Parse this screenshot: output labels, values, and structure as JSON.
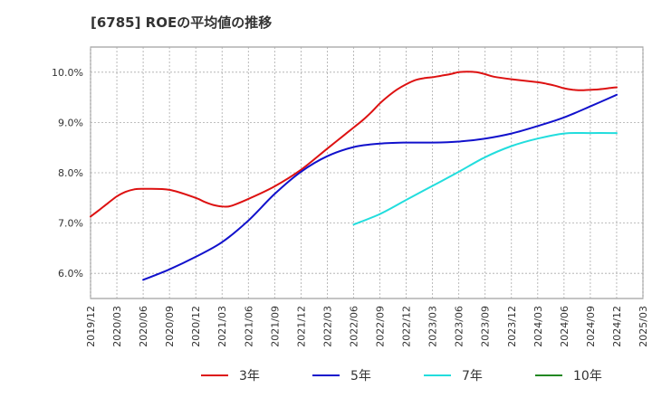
{
  "chart_data": {
    "type": "line",
    "title": "[6785]  ROEの平均値の推移",
    "xlabel": "",
    "ylabel": "",
    "ylim": [
      5.5,
      10.5
    ],
    "xlim": [
      "2019/12",
      "2025/03"
    ],
    "y_ticks": [
      6.0,
      7.0,
      8.0,
      9.0,
      10.0
    ],
    "y_tick_labels": [
      "6.0%",
      "7.0%",
      "8.0%",
      "9.0%",
      "10.0%"
    ],
    "x_ticks": [
      "2019/12",
      "2020/03",
      "2020/06",
      "2020/09",
      "2020/12",
      "2021/03",
      "2021/06",
      "2021/09",
      "2021/12",
      "2022/03",
      "2022/06",
      "2022/09",
      "2022/12",
      "2023/03",
      "2023/06",
      "2023/09",
      "2023/12",
      "2024/03",
      "2024/06",
      "2024/09",
      "2024/12",
      "2025/03"
    ],
    "grid": true,
    "legend_position": "bottom",
    "series": [
      {
        "name": "3年",
        "color": "#dd1111",
        "x": [
          "2019/12",
          "2020/01",
          "2020/02",
          "2020/03",
          "2020/04",
          "2020/05",
          "2020/06",
          "2020/09",
          "2020/12",
          "2021/01",
          "2021/02",
          "2021/03",
          "2021/04",
          "2021/06",
          "2021/09",
          "2021/12",
          "2022/03",
          "2022/06",
          "2022/07",
          "2022/08",
          "2022/09",
          "2022/10",
          "2022/11",
          "2022/12",
          "2023/01",
          "2023/02",
          "2023/03",
          "2023/04",
          "2023/05",
          "2023/06",
          "2023/07",
          "2023/08",
          "2023/09",
          "2023/10",
          "2023/12",
          "2024/03",
          "2024/04",
          "2024/05",
          "2024/06",
          "2024/07",
          "2024/08",
          "2024/09",
          "2024/10",
          "2024/11",
          "2024/12"
        ],
        "values": [
          7.13,
          7.26,
          7.4,
          7.53,
          7.62,
          7.67,
          7.68,
          7.66,
          7.5,
          7.42,
          7.36,
          7.33,
          7.34,
          7.48,
          7.73,
          8.06,
          8.48,
          8.9,
          9.04,
          9.2,
          9.38,
          9.53,
          9.66,
          9.76,
          9.84,
          9.88,
          9.9,
          9.93,
          9.96,
          10.0,
          10.01,
          10.0,
          9.96,
          9.91,
          9.86,
          9.8,
          9.77,
          9.73,
          9.68,
          9.65,
          9.64,
          9.65,
          9.66,
          9.68,
          9.7
        ]
      },
      {
        "name": "5年",
        "color": "#1111cc",
        "x": [
          "2020/06",
          "2020/09",
          "2020/12",
          "2021/03",
          "2021/06",
          "2021/09",
          "2021/12",
          "2022/03",
          "2022/06",
          "2022/09",
          "2022/12",
          "2023/03",
          "2023/06",
          "2023/09",
          "2023/12",
          "2024/03",
          "2024/06",
          "2024/09",
          "2024/12"
        ],
        "values": [
          5.87,
          6.08,
          6.33,
          6.62,
          7.05,
          7.58,
          8.02,
          8.33,
          8.51,
          8.58,
          8.6,
          8.6,
          8.62,
          8.68,
          8.78,
          8.93,
          9.1,
          9.32,
          9.55
        ]
      },
      {
        "name": "7年",
        "color": "#22dddd",
        "x": [
          "2022/06",
          "2022/09",
          "2022/12",
          "2023/03",
          "2023/06",
          "2023/09",
          "2023/12",
          "2024/03",
          "2024/06",
          "2024/09",
          "2024/12"
        ],
        "values": [
          6.97,
          7.18,
          7.46,
          7.74,
          8.02,
          8.31,
          8.53,
          8.68,
          8.78,
          8.79,
          8.79
        ]
      },
      {
        "name": "10年",
        "color": "#228822",
        "x": [],
        "values": []
      }
    ]
  }
}
